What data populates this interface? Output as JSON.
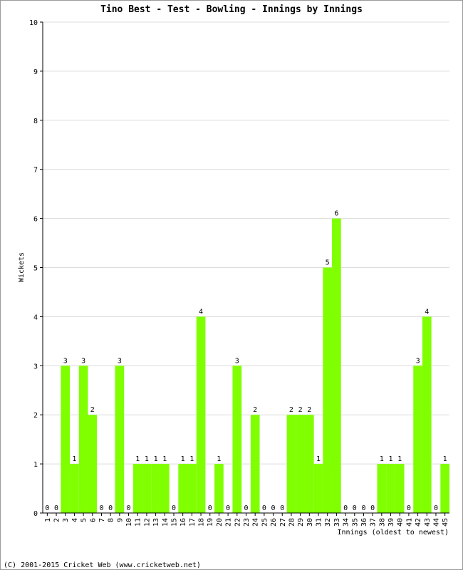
{
  "chart_data": {
    "type": "bar",
    "title": "Tino Best - Test - Bowling - Innings by Innings",
    "xlabel": "Innings (oldest to newest)",
    "ylabel": "Wickets",
    "ylim": [
      0,
      10
    ],
    "yticks": [
      "0",
      "1",
      "2",
      "3",
      "4",
      "5",
      "6",
      "7",
      "8",
      "9",
      "10"
    ],
    "categories": [
      "1",
      "2",
      "3",
      "4",
      "5",
      "6",
      "7",
      "8",
      "9",
      "10",
      "11",
      "12",
      "13",
      "14",
      "15",
      "16",
      "17",
      "18",
      "19",
      "20",
      "21",
      "22",
      "23",
      "24",
      "25",
      "26",
      "27",
      "28",
      "29",
      "30",
      "31",
      "32",
      "33",
      "34",
      "35",
      "36",
      "37",
      "38",
      "39",
      "40",
      "41",
      "42",
      "43",
      "44",
      "45"
    ],
    "values": [
      0,
      0,
      3,
      1,
      3,
      2,
      0,
      0,
      3,
      0,
      1,
      1,
      1,
      1,
      0,
      1,
      1,
      4,
      0,
      1,
      0,
      3,
      0,
      2,
      0,
      0,
      0,
      2,
      2,
      2,
      1,
      5,
      6,
      0,
      0,
      0,
      0,
      1,
      1,
      1,
      0,
      3,
      4,
      0,
      1
    ],
    "bar_color": "#80ff00",
    "grid": true
  },
  "footer": {
    "copyright": "(C) 2001-2015 Cricket Web (www.cricketweb.net)"
  }
}
